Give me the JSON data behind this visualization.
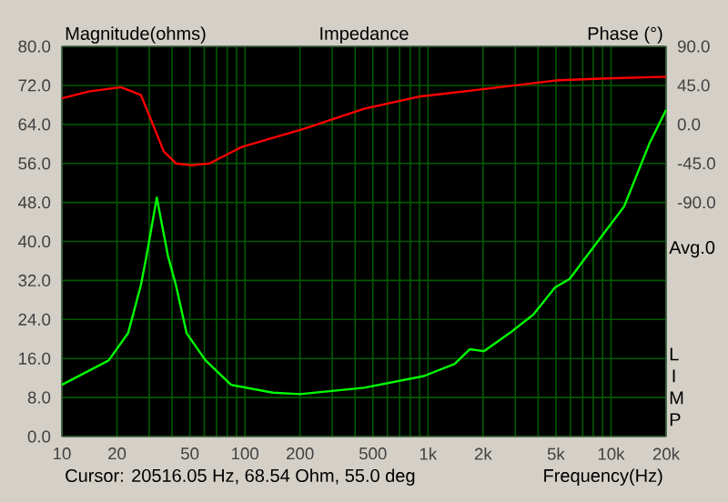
{
  "chart_data": {
    "type": "line",
    "title": "Impedance",
    "ylabel": "Magnitude(ohms)",
    "y2label": "Phase (°)",
    "xlabel": "Frequency(Hz)",
    "annotations": [
      "Avg.0",
      "L I M P",
      "Cursor: 20516.05 Hz, 68.54 Ohm, 55.0 deg"
    ],
    "log": "x",
    "grid": true,
    "line_style": "solid",
    "xlim": [
      10,
      20000
    ],
    "xticks": [
      10,
      20,
      50,
      100,
      200,
      500,
      {
        "value": 1000,
        "label": "1k"
      },
      {
        "value": 2000,
        "label": "2k"
      },
      {
        "value": 5000,
        "label": "5k"
      },
      {
        "value": 10000,
        "label": "10k"
      },
      {
        "value": 20000,
        "label": "20k"
      }
    ],
    "ylim": [
      0,
      80
    ],
    "yticks": [
      {
        "value": 0,
        "label": "0.0"
      },
      {
        "value": 8,
        "label": "8.0"
      },
      {
        "value": 16,
        "label": "16.0"
      },
      {
        "value": 24,
        "label": "24.0"
      },
      {
        "value": 32,
        "label": "32.0"
      },
      {
        "value": 40,
        "label": "40.0"
      },
      {
        "value": 48,
        "label": "48.0"
      },
      {
        "value": 56,
        "label": "56.0"
      },
      {
        "value": 64,
        "label": "64.0"
      },
      {
        "value": 72,
        "label": "72.0"
      },
      {
        "value": 80,
        "label": "80.0"
      }
    ],
    "y2lim": [
      -360,
      90
    ],
    "y2ticks": [
      {
        "value": 90,
        "label": "90.0"
      },
      {
        "value": 45,
        "label": "45.0"
      },
      {
        "value": 0,
        "label": "0.0"
      },
      {
        "value": -45,
        "label": "-45.0"
      },
      {
        "value": -90,
        "label": "-90.0"
      }
    ],
    "series": [
      {
        "color": "#00ff00",
        "x": [
          10,
          18,
          23,
          27,
          29,
          33,
          38,
          42,
          48,
          61,
          84,
          142,
          200,
          447,
          950,
          1400,
          1690,
          2020,
          2790,
          3760,
          4950,
          5940,
          7470,
          11800,
          16300,
          20000
        ],
        "values": [
          10.6,
          15.6,
          21.2,
          31,
          37,
          49,
          37,
          31,
          21.2,
          15.6,
          10.6,
          9,
          8.7,
          10,
          12.4,
          14.9,
          17.9,
          17.5,
          21.2,
          25,
          30.6,
          32.3,
          37.3,
          47.2,
          60.3,
          67
        ]
      },
      {
        "color": "#ff0000",
        "axis": "y2",
        "x": [
          10,
          14,
          21,
          27,
          31,
          36,
          42,
          51,
          64,
          96,
          210,
          447,
          890,
          1890,
          2990,
          5180,
          9380,
          20000
        ],
        "values": [
          30,
          38,
          43,
          34,
          3,
          -31,
          -45,
          -47,
          -45,
          -26,
          -5,
          18,
          32,
          40,
          45,
          51,
          53,
          55
        ]
      }
    ]
  }
}
